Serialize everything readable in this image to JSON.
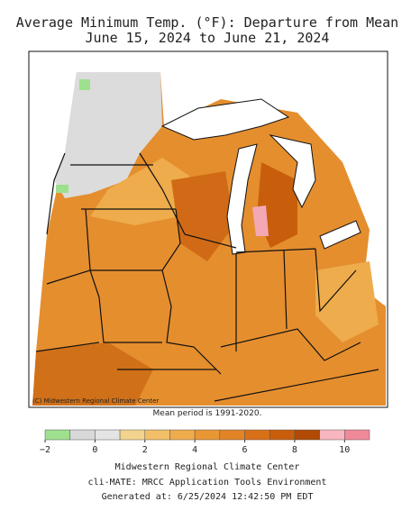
{
  "header": {
    "title": "Average Minimum Temp. (°F): Departure from Mean",
    "subtitle": "June 15, 2024 to June 21, 2024"
  },
  "map": {
    "credit": "(C) Midwestern Regional Climate Center",
    "note": "Mean period is 1991-2020."
  },
  "legend": {
    "bins": [
      -2,
      -1,
      0,
      1,
      2,
      3,
      4,
      5,
      6,
      7,
      8,
      9,
      10,
      11
    ],
    "colors": [
      "#9ee08e",
      "#d8d8d8",
      "#e4e4e4",
      "#f2d48e",
      "#f2bf68",
      "#eeac4c",
      "#e89734",
      "#e28426",
      "#d87018",
      "#c85e0c",
      "#b04a04",
      "#f8b6c0",
      "#f08a98"
    ],
    "ticks": [
      {
        "value": -2,
        "label": "−2"
      },
      0,
      2,
      4,
      6,
      8,
      10
    ]
  },
  "footer": {
    "line1": "Midwestern Regional Climate Center",
    "line2": "cli-MATE: MRCC Application Tools Environment",
    "line3": "Generated at: 6/25/2024 12:42:50 PM EDT"
  }
}
